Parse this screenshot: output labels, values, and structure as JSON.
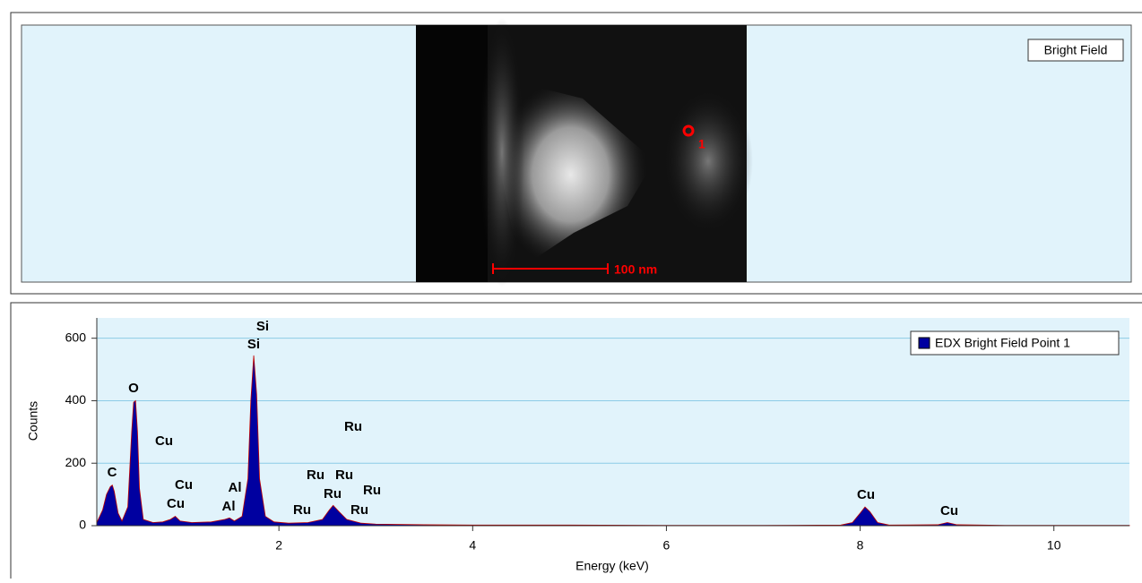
{
  "image_panel": {
    "label": "Bright Field",
    "scale_bar": "100 nm",
    "point_label": "1"
  },
  "chart_data": {
    "type": "area",
    "x_label": "Energy (keV)",
    "y_label": "Counts",
    "xlim": [
      0.12,
      10.78
    ],
    "ylim": [
      0,
      665
    ],
    "xticks": [
      2,
      4,
      6,
      8,
      10
    ],
    "yticks": [
      0,
      200,
      400,
      600
    ],
    "grid": true,
    "series": [
      {
        "name": "EDX Bright Field Point 1",
        "color": "#0000a0",
        "x": [
          0.12,
          0.18,
          0.22,
          0.26,
          0.28,
          0.3,
          0.34,
          0.38,
          0.44,
          0.48,
          0.5,
          0.52,
          0.54,
          0.56,
          0.6,
          0.7,
          0.8,
          0.88,
          0.93,
          0.98,
          1.1,
          1.3,
          1.44,
          1.49,
          1.54,
          1.62,
          1.68,
          1.71,
          1.74,
          1.77,
          1.8,
          1.86,
          1.95,
          2.1,
          2.3,
          2.45,
          2.52,
          2.56,
          2.62,
          2.7,
          2.85,
          3.0,
          3.5,
          4.0,
          5.0,
          6.0,
          7.0,
          7.8,
          7.92,
          8.0,
          8.05,
          8.1,
          8.18,
          8.3,
          8.8,
          8.9,
          9.0,
          9.5,
          10.0,
          10.78
        ],
        "values": [
          10,
          50,
          100,
          125,
          130,
          110,
          40,
          15,
          60,
          300,
          395,
          400,
          300,
          120,
          20,
          10,
          12,
          20,
          30,
          15,
          10,
          12,
          20,
          25,
          15,
          30,
          150,
          400,
          545,
          420,
          150,
          30,
          12,
          8,
          10,
          20,
          50,
          65,
          45,
          20,
          8,
          5,
          3,
          2,
          2,
          1,
          1,
          2,
          10,
          40,
          60,
          45,
          10,
          2,
          3,
          10,
          3,
          1,
          1,
          1
        ]
      }
    ],
    "annotations": [
      "Si",
      "Si",
      "O",
      "Cu",
      "C",
      "Cu",
      "Cu",
      "Al",
      "Al",
      "Ru",
      "Ru",
      "Ru",
      "Ru",
      "Ru",
      "Ru",
      "Ru",
      "Cu",
      "Cu"
    ]
  }
}
